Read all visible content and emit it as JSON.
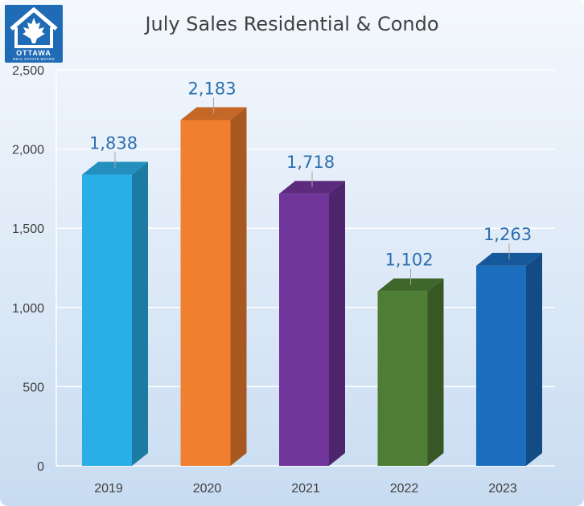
{
  "logo": {
    "word": "OTTAWA",
    "sub": "REAL ESTATE BOARD"
  },
  "chart_data": {
    "type": "bar",
    "title": "July Sales Residential & Condo",
    "categories": [
      "2019",
      "2020",
      "2021",
      "2022",
      "2023"
    ],
    "values": [
      1838,
      2183,
      1718,
      1102,
      1263
    ],
    "value_labels": [
      "1,838",
      "2,183",
      "1,718",
      "1,102",
      "1,263"
    ],
    "ylim": [
      0,
      2500
    ],
    "yticks": [
      0,
      500,
      1000,
      1500,
      2000,
      2500
    ],
    "ytick_labels": [
      "0",
      "500",
      "1,000",
      "1,500",
      "2,000",
      "2,500"
    ],
    "grid": true,
    "style": "3d-column",
    "colors": [
      "#29aee8",
      "#f07f2f",
      "#70359a",
      "#4e7e35",
      "#1b6dbd"
    ]
  }
}
